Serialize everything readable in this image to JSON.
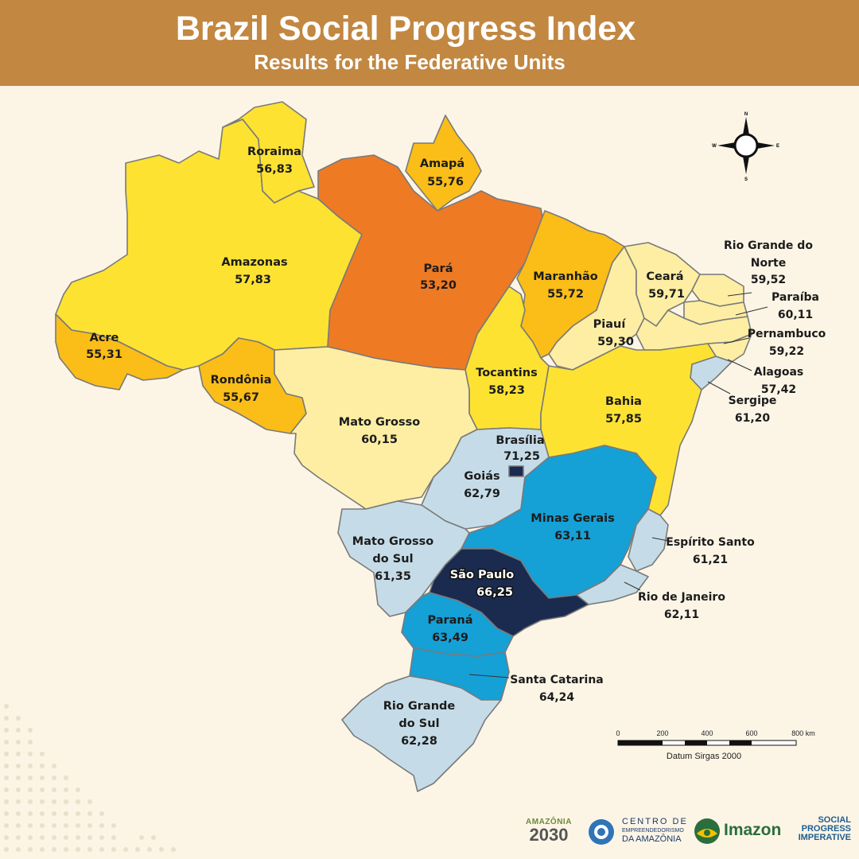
{
  "header": {
    "title": "Brazil Social Progress Index",
    "subtitle": "Results for the Federative Units"
  },
  "colors": {
    "header_bg": "#c28741",
    "background": "#fcf5e6",
    "lowest_orange": "#ee7a24",
    "amber": "#fbbd17",
    "yellow": "#fde232",
    "pale_yellow": "#fdeea3",
    "light_blue": "#c5dce8",
    "blue": "#15a0d6",
    "navy": "#1a2b4f"
  },
  "states": [
    {
      "name": "Roraima",
      "value": "56,83"
    },
    {
      "name": "Amapá",
      "value": "55,76"
    },
    {
      "name": "Amazonas",
      "value": "57,83"
    },
    {
      "name": "Pará",
      "value": "53,20"
    },
    {
      "name": "Maranhão",
      "value": "55,72"
    },
    {
      "name": "Ceará",
      "value": "59,71"
    },
    {
      "name": "Rio Grande do Norte",
      "value": "59,52"
    },
    {
      "name": "Paraíba",
      "value": "60,11"
    },
    {
      "name": "Pernambuco",
      "value": "59,22"
    },
    {
      "name": "Alagoas",
      "value": "57,42"
    },
    {
      "name": "Sergipe",
      "value": "61,20"
    },
    {
      "name": "Acre",
      "value": "55,31"
    },
    {
      "name": "Rondônia",
      "value": "55,67"
    },
    {
      "name": "Piauí",
      "value": "59,30"
    },
    {
      "name": "Tocantins",
      "value": "58,23"
    },
    {
      "name": "Bahia",
      "value": "57,85"
    },
    {
      "name": "Mato Grosso",
      "value": "60,15"
    },
    {
      "name": "Brasília",
      "value": "71,25"
    },
    {
      "name": "Goiás",
      "value": "62,79"
    },
    {
      "name": "Minas Gerais",
      "value": "63,11"
    },
    {
      "name": "Espírito Santo",
      "value": "61,21"
    },
    {
      "name": "Mato Grosso do Sul",
      "value": "61,35"
    },
    {
      "name": "São Paulo",
      "value": "66,25"
    },
    {
      "name": "Rio de Janeiro",
      "value": "62,11"
    },
    {
      "name": "Paraná",
      "value": "63,49"
    },
    {
      "name": "Santa Catarina",
      "value": "64,24"
    },
    {
      "name": "Rio Grande do Sul",
      "value": "62,28"
    }
  ],
  "label_lines": {
    "rio_grande_do_norte": [
      "Rio Grande do",
      "Norte"
    ],
    "mato_grosso_do_sul": [
      "Mato Grosso",
      "do Sul"
    ],
    "rio_grande_do_sul": [
      "Rio Grande",
      "do Sul"
    ]
  },
  "compass": {
    "n": "N",
    "s": "S",
    "e": "E",
    "w": "W"
  },
  "scale": {
    "ticks": [
      "0",
      "200",
      "400",
      "600",
      "800 km"
    ],
    "datum": "Datum Sirgas 2000"
  },
  "logos": {
    "amazonia_top": "AMAZÔNIA",
    "amazonia_big": "2030",
    "centro_line1": "CENTRO DE",
    "centro_line2": "EMPREENDEDORISMO",
    "centro_line3": "DA AMAZÔNIA",
    "imazon": "Imazon",
    "spi_line1": "SOCIAL",
    "spi_line2": "PROGRESS",
    "spi_line3": "IMPERATIVE"
  }
}
